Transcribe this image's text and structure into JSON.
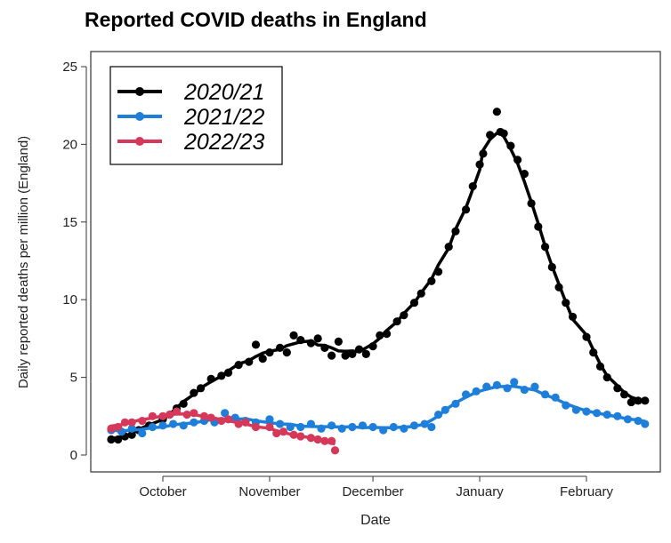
{
  "chart_data": {
    "type": "line",
    "title": "Reported COVID deaths in England",
    "xlabel": "Date",
    "ylabel": "Daily reported deaths per million (England)",
    "ylim": [
      0,
      25
    ],
    "yticks": [
      0,
      5,
      10,
      15,
      20,
      25
    ],
    "xticks": [
      {
        "label": "October",
        "date": "10-01"
      },
      {
        "label": "November",
        "date": "11-01"
      },
      {
        "label": "December",
        "date": "12-01"
      },
      {
        "label": "January",
        "date": "01-01"
      },
      {
        "label": "February",
        "date": "02-01"
      }
    ],
    "grid": false,
    "legend_placement": "top-left",
    "series": [
      {
        "name": "2020/21",
        "color": "#000000",
        "points": [
          [
            "09-16",
            1.0
          ],
          [
            "09-18",
            1.0
          ],
          [
            "09-20",
            1.2
          ],
          [
            "09-22",
            1.3
          ],
          [
            "09-24",
            1.6
          ],
          [
            "09-27",
            1.9
          ],
          [
            "10-01",
            2.3
          ],
          [
            "10-03",
            2.6
          ],
          [
            "10-05",
            3.0
          ],
          [
            "10-07",
            3.3
          ],
          [
            "10-10",
            4.0
          ],
          [
            "10-12",
            4.3
          ],
          [
            "10-15",
            4.9
          ],
          [
            "10-18",
            5.1
          ],
          [
            "10-20",
            5.3
          ],
          [
            "10-23",
            5.8
          ],
          [
            "10-26",
            6.0
          ],
          [
            "10-28",
            7.1
          ],
          [
            "10-30",
            6.2
          ],
          [
            "11-01",
            6.6
          ],
          [
            "11-04",
            6.9
          ],
          [
            "11-06",
            6.6
          ],
          [
            "11-08",
            7.7
          ],
          [
            "11-10",
            7.4
          ],
          [
            "11-13",
            7.2
          ],
          [
            "11-15",
            7.5
          ],
          [
            "11-17",
            6.9
          ],
          [
            "11-19",
            6.4
          ],
          [
            "11-21",
            7.3
          ],
          [
            "11-23",
            6.4
          ],
          [
            "11-25",
            6.5
          ],
          [
            "11-27",
            6.8
          ],
          [
            "11-29",
            6.5
          ],
          [
            "12-01",
            7.0
          ],
          [
            "12-03",
            7.7
          ],
          [
            "12-05",
            7.8
          ],
          [
            "12-08",
            8.6
          ],
          [
            "12-10",
            9.0
          ],
          [
            "12-13",
            9.8
          ],
          [
            "12-15",
            10.4
          ],
          [
            "12-18",
            11.2
          ],
          [
            "12-20",
            11.8
          ],
          [
            "12-23",
            13.4
          ],
          [
            "12-25",
            14.4
          ],
          [
            "12-28",
            15.8
          ],
          [
            "12-30",
            17.3
          ],
          [
            "01-01",
            18.7
          ],
          [
            "01-02",
            19.4
          ],
          [
            "01-04",
            20.6
          ],
          [
            "01-06",
            22.1
          ],
          [
            "01-07",
            20.8
          ],
          [
            "01-08",
            20.7
          ],
          [
            "01-10",
            19.9
          ],
          [
            "01-12",
            19.0
          ],
          [
            "01-14",
            18.1
          ],
          [
            "01-16",
            16.2
          ],
          [
            "01-18",
            14.7
          ],
          [
            "01-20",
            13.4
          ],
          [
            "01-22",
            12.1
          ],
          [
            "01-24",
            10.8
          ],
          [
            "01-26",
            9.8
          ],
          [
            "01-28",
            8.9
          ],
          [
            "02-01",
            7.6
          ],
          [
            "02-03",
            6.6
          ],
          [
            "02-05",
            5.7
          ],
          [
            "02-07",
            5.0
          ],
          [
            "02-10",
            4.3
          ],
          [
            "02-12",
            3.9
          ],
          [
            "02-14",
            3.4
          ],
          [
            "02-16",
            3.5
          ],
          [
            "02-18",
            3.5
          ]
        ]
      },
      {
        "name": "2021/22",
        "color": "#1E7FDB",
        "points": [
          [
            "09-16",
            1.6
          ],
          [
            "09-19",
            1.5
          ],
          [
            "09-22",
            1.7
          ],
          [
            "09-25",
            1.4
          ],
          [
            "09-28",
            1.8
          ],
          [
            "10-01",
            1.9
          ],
          [
            "10-04",
            2.0
          ],
          [
            "10-07",
            1.9
          ],
          [
            "10-10",
            2.1
          ],
          [
            "10-13",
            2.2
          ],
          [
            "10-16",
            2.1
          ],
          [
            "10-19",
            2.7
          ],
          [
            "10-22",
            2.4
          ],
          [
            "10-25",
            2.2
          ],
          [
            "10-28",
            2.1
          ],
          [
            "11-01",
            2.3
          ],
          [
            "11-04",
            2.0
          ],
          [
            "11-07",
            1.8
          ],
          [
            "11-10",
            1.8
          ],
          [
            "11-13",
            2.0
          ],
          [
            "11-16",
            1.7
          ],
          [
            "11-19",
            1.9
          ],
          [
            "11-22",
            1.7
          ],
          [
            "11-25",
            1.8
          ],
          [
            "11-28",
            1.9
          ],
          [
            "12-01",
            1.8
          ],
          [
            "12-04",
            1.6
          ],
          [
            "12-07",
            1.8
          ],
          [
            "12-10",
            1.7
          ],
          [
            "12-13",
            1.9
          ],
          [
            "12-16",
            2.0
          ],
          [
            "12-18",
            1.8
          ],
          [
            "12-20",
            2.6
          ],
          [
            "12-22",
            2.9
          ],
          [
            "12-25",
            3.3
          ],
          [
            "12-28",
            3.9
          ],
          [
            "12-31",
            4.1
          ],
          [
            "01-03",
            4.4
          ],
          [
            "01-06",
            4.5
          ],
          [
            "01-09",
            4.3
          ],
          [
            "01-11",
            4.7
          ],
          [
            "01-14",
            4.2
          ],
          [
            "01-17",
            4.4
          ],
          [
            "01-20",
            3.9
          ],
          [
            "01-23",
            3.7
          ],
          [
            "01-26",
            3.2
          ],
          [
            "01-29",
            2.9
          ],
          [
            "02-01",
            2.8
          ],
          [
            "02-04",
            2.7
          ],
          [
            "02-07",
            2.6
          ],
          [
            "02-10",
            2.5
          ],
          [
            "02-13",
            2.3
          ],
          [
            "02-16",
            2.2
          ],
          [
            "02-18",
            2.0
          ]
        ]
      },
      {
        "name": "2022/23",
        "color": "#D6385A",
        "points": [
          [
            "09-16",
            1.7
          ],
          [
            "09-18",
            1.8
          ],
          [
            "09-20",
            2.1
          ],
          [
            "09-22",
            2.1
          ],
          [
            "09-25",
            2.2
          ],
          [
            "09-28",
            2.5
          ],
          [
            "10-01",
            2.5
          ],
          [
            "10-03",
            2.6
          ],
          [
            "10-05",
            2.8
          ],
          [
            "10-08",
            2.6
          ],
          [
            "10-10",
            2.7
          ],
          [
            "10-13",
            2.5
          ],
          [
            "10-15",
            2.4
          ],
          [
            "10-18",
            2.2
          ],
          [
            "10-20",
            2.3
          ],
          [
            "10-23",
            2.0
          ],
          [
            "10-25",
            2.1
          ],
          [
            "10-28",
            1.8
          ],
          [
            "11-01",
            1.8
          ],
          [
            "11-03",
            1.4
          ],
          [
            "11-05",
            1.5
          ],
          [
            "11-08",
            1.3
          ],
          [
            "11-10",
            1.2
          ],
          [
            "11-13",
            1.1
          ],
          [
            "11-15",
            1.0
          ],
          [
            "11-17",
            0.9
          ],
          [
            "11-19",
            0.9
          ],
          [
            "11-20",
            0.3
          ]
        ]
      }
    ]
  }
}
